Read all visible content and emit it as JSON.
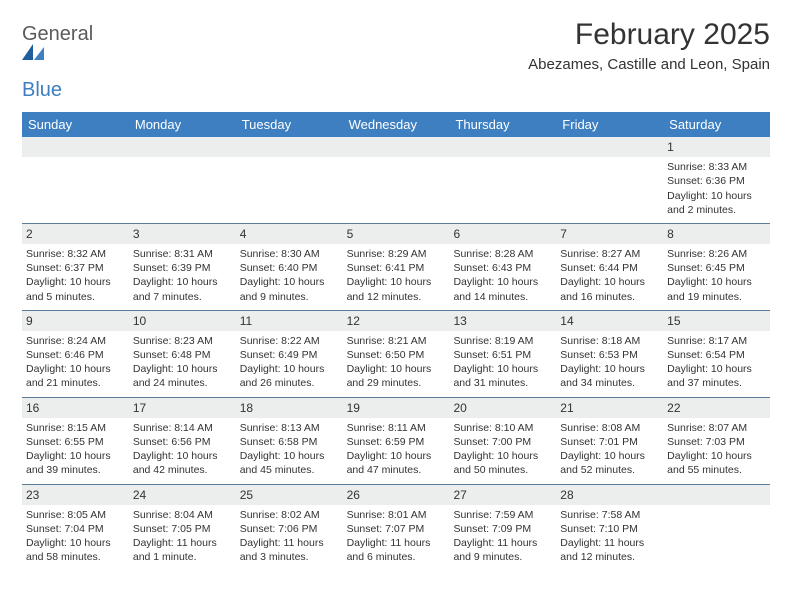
{
  "brand": {
    "word1": "General",
    "word2": "Blue"
  },
  "title": "February 2025",
  "location": "Abezames, Castille and Leon, Spain",
  "colors": {
    "header_bg": "#3d7fc1",
    "header_text": "#ffffff",
    "daynum_bg": "#eceded",
    "text": "#333333",
    "divider": "#5a7a9a",
    "logo_gray": "#5a5a5a",
    "logo_blue": "#3d7fc1"
  },
  "day_names": [
    "Sunday",
    "Monday",
    "Tuesday",
    "Wednesday",
    "Thursday",
    "Friday",
    "Saturday"
  ],
  "weeks": [
    [
      null,
      null,
      null,
      null,
      null,
      null,
      {
        "n": "1",
        "sr": "8:33 AM",
        "ss": "6:36 PM",
        "dl": "10 hours and 2 minutes."
      }
    ],
    [
      {
        "n": "2",
        "sr": "8:32 AM",
        "ss": "6:37 PM",
        "dl": "10 hours and 5 minutes."
      },
      {
        "n": "3",
        "sr": "8:31 AM",
        "ss": "6:39 PM",
        "dl": "10 hours and 7 minutes."
      },
      {
        "n": "4",
        "sr": "8:30 AM",
        "ss": "6:40 PM",
        "dl": "10 hours and 9 minutes."
      },
      {
        "n": "5",
        "sr": "8:29 AM",
        "ss": "6:41 PM",
        "dl": "10 hours and 12 minutes."
      },
      {
        "n": "6",
        "sr": "8:28 AM",
        "ss": "6:43 PM",
        "dl": "10 hours and 14 minutes."
      },
      {
        "n": "7",
        "sr": "8:27 AM",
        "ss": "6:44 PM",
        "dl": "10 hours and 16 minutes."
      },
      {
        "n": "8",
        "sr": "8:26 AM",
        "ss": "6:45 PM",
        "dl": "10 hours and 19 minutes."
      }
    ],
    [
      {
        "n": "9",
        "sr": "8:24 AM",
        "ss": "6:46 PM",
        "dl": "10 hours and 21 minutes."
      },
      {
        "n": "10",
        "sr": "8:23 AM",
        "ss": "6:48 PM",
        "dl": "10 hours and 24 minutes."
      },
      {
        "n": "11",
        "sr": "8:22 AM",
        "ss": "6:49 PM",
        "dl": "10 hours and 26 minutes."
      },
      {
        "n": "12",
        "sr": "8:21 AM",
        "ss": "6:50 PM",
        "dl": "10 hours and 29 minutes."
      },
      {
        "n": "13",
        "sr": "8:19 AM",
        "ss": "6:51 PM",
        "dl": "10 hours and 31 minutes."
      },
      {
        "n": "14",
        "sr": "8:18 AM",
        "ss": "6:53 PM",
        "dl": "10 hours and 34 minutes."
      },
      {
        "n": "15",
        "sr": "8:17 AM",
        "ss": "6:54 PM",
        "dl": "10 hours and 37 minutes."
      }
    ],
    [
      {
        "n": "16",
        "sr": "8:15 AM",
        "ss": "6:55 PM",
        "dl": "10 hours and 39 minutes."
      },
      {
        "n": "17",
        "sr": "8:14 AM",
        "ss": "6:56 PM",
        "dl": "10 hours and 42 minutes."
      },
      {
        "n": "18",
        "sr": "8:13 AM",
        "ss": "6:58 PM",
        "dl": "10 hours and 45 minutes."
      },
      {
        "n": "19",
        "sr": "8:11 AM",
        "ss": "6:59 PM",
        "dl": "10 hours and 47 minutes."
      },
      {
        "n": "20",
        "sr": "8:10 AM",
        "ss": "7:00 PM",
        "dl": "10 hours and 50 minutes."
      },
      {
        "n": "21",
        "sr": "8:08 AM",
        "ss": "7:01 PM",
        "dl": "10 hours and 52 minutes."
      },
      {
        "n": "22",
        "sr": "8:07 AM",
        "ss": "7:03 PM",
        "dl": "10 hours and 55 minutes."
      }
    ],
    [
      {
        "n": "23",
        "sr": "8:05 AM",
        "ss": "7:04 PM",
        "dl": "10 hours and 58 minutes."
      },
      {
        "n": "24",
        "sr": "8:04 AM",
        "ss": "7:05 PM",
        "dl": "11 hours and 1 minute."
      },
      {
        "n": "25",
        "sr": "8:02 AM",
        "ss": "7:06 PM",
        "dl": "11 hours and 3 minutes."
      },
      {
        "n": "26",
        "sr": "8:01 AM",
        "ss": "7:07 PM",
        "dl": "11 hours and 6 minutes."
      },
      {
        "n": "27",
        "sr": "7:59 AM",
        "ss": "7:09 PM",
        "dl": "11 hours and 9 minutes."
      },
      {
        "n": "28",
        "sr": "7:58 AM",
        "ss": "7:10 PM",
        "dl": "11 hours and 12 minutes."
      },
      null
    ]
  ],
  "labels": {
    "sunrise": "Sunrise:",
    "sunset": "Sunset:",
    "daylight": "Daylight:"
  }
}
